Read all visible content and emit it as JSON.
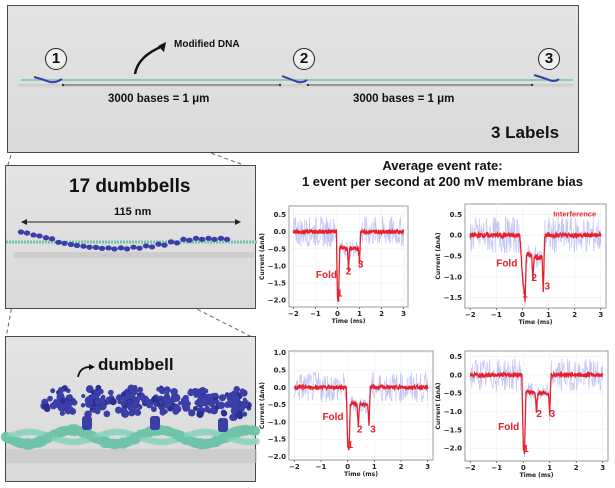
{
  "overview": {
    "modified_dna_label": "Modified DNA",
    "label_markers": [
      "1",
      "2",
      "3"
    ],
    "spacing_labels": [
      "3000 bases = 1 μm",
      "3000 bases = 1 μm"
    ],
    "summary_label": "3 Labels"
  },
  "zoom_mid": {
    "title": "17 dumbbells",
    "length_label": "115 nm"
  },
  "zoom_close": {
    "label": "dumbbell"
  },
  "event_rate": {
    "line1": "Average event rate:",
    "line2": "1 event per second at 200 mV membrane bias"
  },
  "colors": {
    "dna": "#6fc3aa",
    "dumbbell": "#3a3fa8",
    "trace_mean": "#e8202a",
    "trace_raw": "#8f95f0"
  },
  "chart_data": [
    {
      "type": "line",
      "xlabel": "Time (ms)",
      "ylabel": "Current (ΔnA)",
      "xlim": [
        -2.2,
        3.2
      ],
      "ylim": [
        -2.2,
        0.75
      ],
      "xticks": [
        -2,
        -1,
        0,
        1,
        2,
        3
      ],
      "yticks": [
        0.5,
        0.0,
        -0.5,
        -1.0,
        -1.5,
        -2.0
      ],
      "grid": true,
      "series": [
        {
          "name": "mean current",
          "x": [
            -2,
            -0.05,
            0.0,
            0.05,
            0.1,
            0.15,
            0.45,
            0.5,
            0.55,
            0.95,
            1.0,
            1.05,
            3
          ],
          "y": [
            0,
            0,
            -1.9,
            -2.0,
            -0.5,
            -0.45,
            -0.5,
            -1.1,
            -0.5,
            -0.5,
            -0.9,
            0,
            0
          ]
        }
      ],
      "annotations": [
        {
          "text": "Fold",
          "x": -0.5,
          "y": -1.35
        },
        {
          "text": "1",
          "x": 0.1,
          "y": -1.9
        },
        {
          "text": "2",
          "x": 0.5,
          "y": -1.25
        },
        {
          "text": "3",
          "x": 1.05,
          "y": -1.05
        }
      ]
    },
    {
      "type": "line",
      "xlabel": "Time (ms)",
      "ylabel": "Current (ΔnA)",
      "xlim": [
        -2.2,
        3.2
      ],
      "ylim": [
        -1.75,
        0.75
      ],
      "xticks": [
        -2,
        -1,
        0,
        1,
        2,
        3
      ],
      "yticks": [
        0.5,
        0.0,
        -0.5,
        -1.0,
        -1.5
      ],
      "grid": true,
      "series": [
        {
          "name": "mean current",
          "x": [
            -2,
            -0.1,
            0.0,
            0.1,
            0.15,
            0.2,
            0.35,
            0.4,
            0.45,
            0.75,
            0.8,
            0.85,
            3
          ],
          "y": [
            0,
            0,
            -1.0,
            -1.55,
            -0.5,
            -0.45,
            -0.5,
            -1.05,
            -0.5,
            -0.55,
            -1.35,
            0,
            0
          ]
        }
      ],
      "annotations": [
        {
          "text": "Interference",
          "x": 2.0,
          "y": 0.45
        },
        {
          "text": "Fold",
          "x": -0.6,
          "y": -0.75
        },
        {
          "text": "1",
          "x": 0.1,
          "y": -1.5
        },
        {
          "text": "2",
          "x": 0.45,
          "y": -1.1
        },
        {
          "text": "3",
          "x": 0.95,
          "y": -1.3
        }
      ]
    },
    {
      "type": "line",
      "xlabel": "Time (ms)",
      "ylabel": "Current (ΔnA)",
      "xlim": [
        -2.2,
        3.2
      ],
      "ylim": [
        -2.1,
        1.05
      ],
      "xticks": [
        -2,
        -1,
        0,
        1,
        2,
        3
      ],
      "yticks": [
        1.0,
        0.5,
        0.0,
        -0.5,
        -1.0,
        -1.5,
        -2.0
      ],
      "grid": true,
      "series": [
        {
          "name": "mean current",
          "x": [
            -2,
            -0.05,
            0.0,
            0.05,
            0.1,
            0.15,
            0.35,
            0.4,
            0.45,
            0.75,
            0.8,
            0.85,
            3
          ],
          "y": [
            0,
            0,
            -1.7,
            -1.8,
            -0.5,
            -0.45,
            -0.5,
            -1.1,
            -0.5,
            -0.5,
            -1.05,
            0,
            0
          ]
        }
      ],
      "annotations": [
        {
          "text": "Fold",
          "x": -0.55,
          "y": -0.95
        },
        {
          "text": "1",
          "x": 0.1,
          "y": -1.75
        },
        {
          "text": "2",
          "x": 0.45,
          "y": -1.3
        },
        {
          "text": "3",
          "x": 0.95,
          "y": -1.3
        }
      ]
    },
    {
      "type": "line",
      "xlabel": "Time (ms)",
      "ylabel": "Current (ΔnA)",
      "xlim": [
        -2.2,
        3.2
      ],
      "ylim": [
        -2.35,
        0.65
      ],
      "xticks": [
        -2,
        -1,
        0,
        1,
        2,
        3
      ],
      "yticks": [
        0.5,
        0.0,
        -0.5,
        -1.0,
        -1.5,
        -2.0
      ],
      "grid": true,
      "series": [
        {
          "name": "mean current",
          "x": [
            -2,
            -0.05,
            0.0,
            0.05,
            0.1,
            0.15,
            0.45,
            0.5,
            0.55,
            0.95,
            1.0,
            1.05,
            3
          ],
          "y": [
            0,
            0,
            -2.0,
            -2.1,
            -0.5,
            -0.45,
            -0.5,
            -1.05,
            -0.5,
            -0.5,
            -1.05,
            0,
            0
          ]
        }
      ],
      "annotations": [
        {
          "text": "Fold",
          "x": -0.55,
          "y": -1.5
        },
        {
          "text": "1",
          "x": 0.1,
          "y": -2.1
        },
        {
          "text": "2",
          "x": 0.6,
          "y": -1.15
        },
        {
          "text": "3",
          "x": 1.1,
          "y": -1.15
        }
      ]
    }
  ]
}
